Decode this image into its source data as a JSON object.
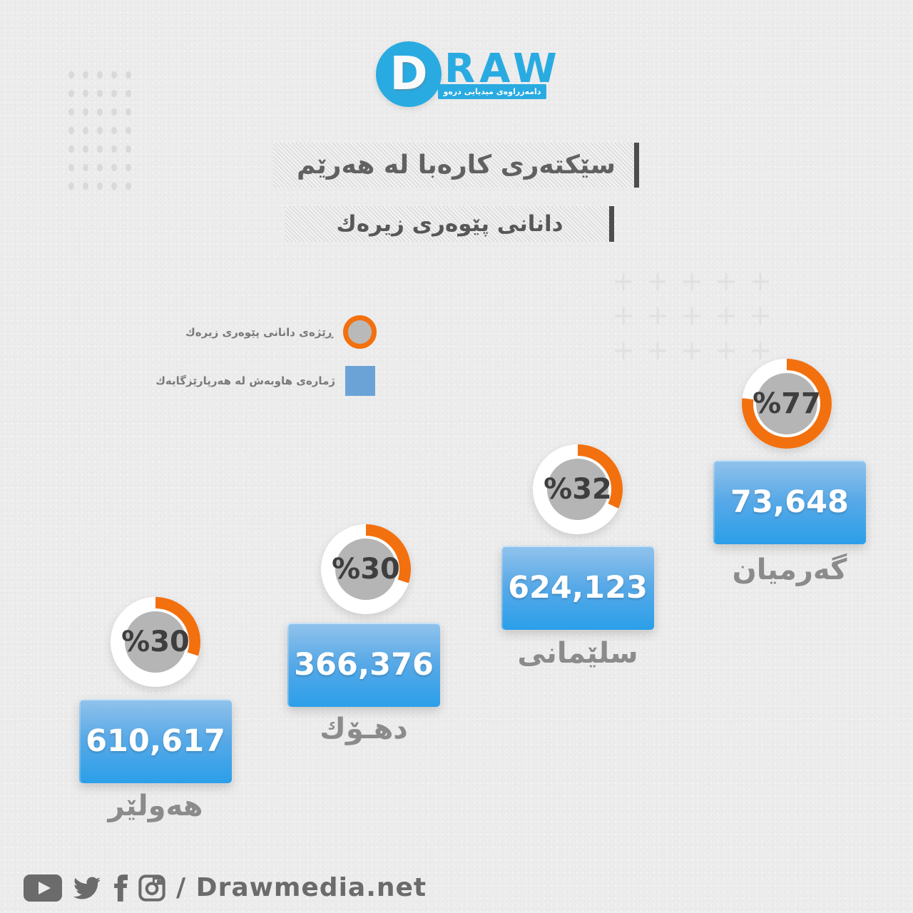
{
  "logo": {
    "d_letter": "D",
    "raw_text": "RAW",
    "tagline": "دامەزراوەی میدیایی درەو",
    "brand_color": "#29abe2"
  },
  "title": {
    "line1": "سێكتەری كارەبا له هەرێم",
    "line2": "دانانی پێوەری زیرەك"
  },
  "legend": {
    "percent_label": "ڕێژەی دانانی پێوەری زیرەك",
    "count_label": "ژمارەی هاوبەش له هەرپارێزگایەك"
  },
  "chart_data": {
    "type": "pie",
    "title": "سێكتەری كارەبا له هەرێم — دانانی پێوەری زیرەك",
    "legend_position": "upper-left",
    "series": [
      {
        "name": "گەرمیان",
        "percent": 77,
        "percent_label": "%77",
        "subscribers": "73,648"
      },
      {
        "name": "سلێمانی",
        "percent": 32,
        "percent_label": "%32",
        "subscribers": "624,123"
      },
      {
        "name": "دهـۆك",
        "percent": 30,
        "percent_label": "%30",
        "subscribers": "366,376"
      },
      {
        "name": "هەولێر",
        "percent": 30,
        "percent_label": "%30",
        "subscribers": "610,617"
      }
    ],
    "colors": {
      "arc": "#f3700f",
      "track": "#ffffff",
      "inner": "#b5b5b5",
      "box_top": "#92c3ec",
      "box_bottom": "#2b9fe9",
      "label_gray": "#8b8b8b"
    }
  },
  "footer": {
    "site": "/ Drawmedia.net"
  },
  "decor": {
    "plus_glyph": "+",
    "plus_cols": 5,
    "plus_rows": 3
  }
}
